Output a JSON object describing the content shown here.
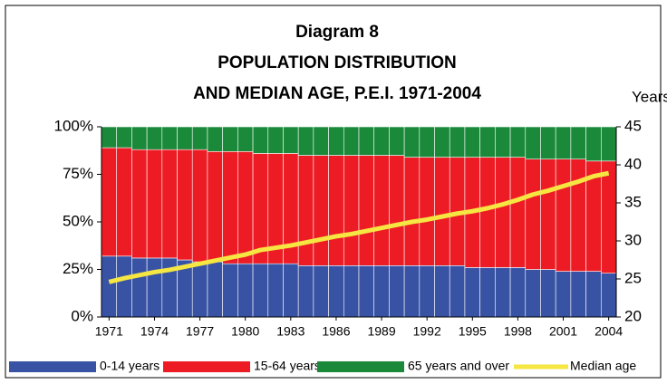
{
  "chart_data": {
    "type": "bar",
    "stacked": true,
    "title": [
      "Diagram 8",
      "POPULATION DISTRIBUTION",
      "AND MEDIAN AGE, P.E.I. 1971-2004"
    ],
    "y2label": "Years",
    "categories": [
      "1971",
      null,
      null,
      "1974",
      null,
      null,
      "1977",
      null,
      null,
      "1980",
      null,
      null,
      "1983",
      null,
      null,
      "1986",
      null,
      null,
      "1989",
      null,
      null,
      "1992",
      null,
      null,
      "1995",
      null,
      null,
      "1998",
      null,
      null,
      "2001",
      null,
      null,
      "2004"
    ],
    "series": [
      {
        "name": "0-14 years",
        "color": "#3953a4",
        "values": [
          32,
          32,
          31,
          31,
          31,
          30,
          29,
          29,
          28,
          28,
          28,
          28,
          28,
          27,
          27,
          27,
          27,
          27,
          27,
          27,
          27,
          27,
          27,
          27,
          26,
          26,
          26,
          26,
          25,
          25,
          24,
          24,
          24,
          23
        ]
      },
      {
        "name": "15-64 years",
        "color": "#ed1c24",
        "values": [
          57,
          57,
          57,
          57,
          57,
          58,
          59,
          58,
          59,
          59,
          58,
          58,
          58,
          58,
          58,
          58,
          58,
          58,
          58,
          58,
          57,
          57,
          57,
          57,
          58,
          58,
          58,
          58,
          58,
          58,
          59,
          59,
          58,
          59
        ]
      },
      {
        "name": "65 years and over",
        "color": "#1a8a3a",
        "values": [
          11,
          11,
          12,
          12,
          12,
          12,
          12,
          13,
          13,
          13,
          14,
          14,
          14,
          15,
          15,
          15,
          15,
          15,
          15,
          15,
          16,
          16,
          16,
          16,
          16,
          16,
          16,
          16,
          17,
          17,
          17,
          17,
          18,
          18
        ]
      },
      {
        "name": "Median age",
        "color": "#f5e642",
        "type": "line",
        "axis": "y2",
        "values": [
          24.6,
          25.1,
          25.5,
          25.9,
          26.2,
          26.6,
          27.0,
          27.4,
          27.8,
          28.2,
          28.8,
          29.1,
          29.4,
          29.8,
          30.2,
          30.6,
          30.9,
          31.3,
          31.7,
          32.1,
          32.5,
          32.8,
          33.2,
          33.6,
          33.9,
          34.3,
          34.8,
          35.4,
          36.1,
          36.6,
          37.2,
          37.8,
          38.5,
          38.9
        ]
      }
    ],
    "ylim": [
      0,
      100
    ],
    "yticks": [
      {
        "value": 0,
        "label": "0%"
      },
      {
        "value": 25,
        "label": "25%"
      },
      {
        "value": 50,
        "label": "50%"
      },
      {
        "value": 75,
        "label": "75%"
      },
      {
        "value": 100,
        "label": "100%"
      }
    ],
    "y2lim": [
      20,
      45
    ],
    "y2ticks": [
      20,
      25,
      30,
      35,
      40,
      45
    ],
    "legend": "bottom"
  }
}
